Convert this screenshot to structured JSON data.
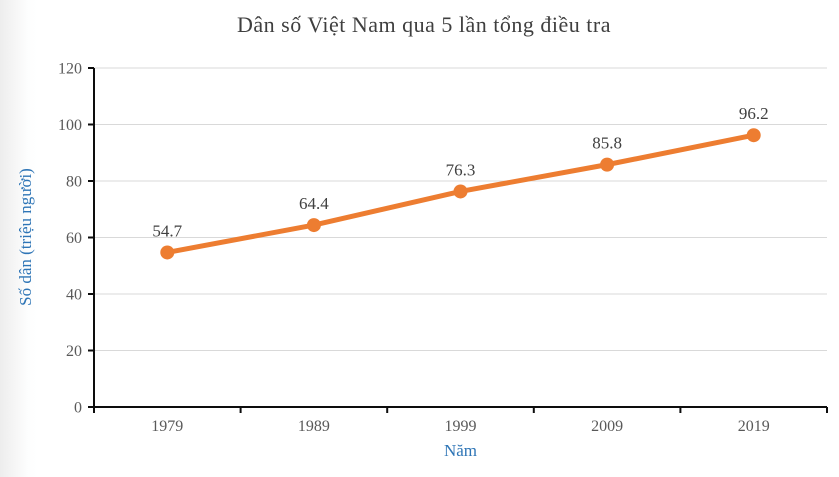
{
  "chart_data": {
    "type": "line",
    "title": "Dân số Việt Nam qua 5 lần tổng điều tra",
    "xlabel": "Năm",
    "ylabel": "Số dân (triệu người)",
    "categories": [
      "1979",
      "1989",
      "1999",
      "2009",
      "2019"
    ],
    "series": [
      {
        "name": "Số dân",
        "values": [
          54.7,
          64.4,
          76.3,
          85.8,
          96.2
        ]
      }
    ],
    "data_labels": [
      "54.7",
      "64.4",
      "76.3",
      "85.8",
      "96.2"
    ],
    "ylim": [
      0,
      120
    ],
    "ytick_step": 20,
    "ytick_labels": [
      "0",
      "20",
      "40",
      "60",
      "80",
      "100",
      "120"
    ],
    "grid": true,
    "legend_position": "none",
    "colors": {
      "series": "#ED7D31",
      "axis_title": "#2E75B6",
      "tick_label": "#595959",
      "data_label": "#404040",
      "title": "#3f3f3f",
      "gridline": "#D9D9D9",
      "axis_line": "#0d0d0d"
    }
  }
}
